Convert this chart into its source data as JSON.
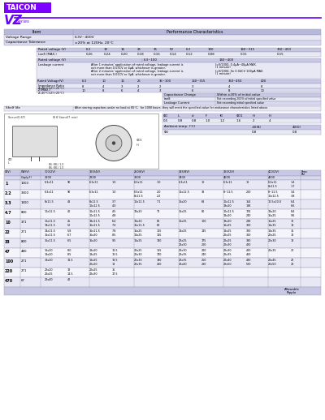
{
  "title": "VZ",
  "subtitle": "Series",
  "brand": "TAICON",
  "brand_bg": "#7B00FF",
  "brand_fg": "#FFFFFF",
  "line_color": "#6600FF",
  "bg_color": "#FFFFFF",
  "table_header_bg": "#B8B8D8",
  "table_row1_bg": "#D8D8EE",
  "table_row2_bg": "#E8E8F4",
  "inner_header_bg": "#C8C8E4",
  "dark_text": "#000000",
  "gray_text": "#333333"
}
